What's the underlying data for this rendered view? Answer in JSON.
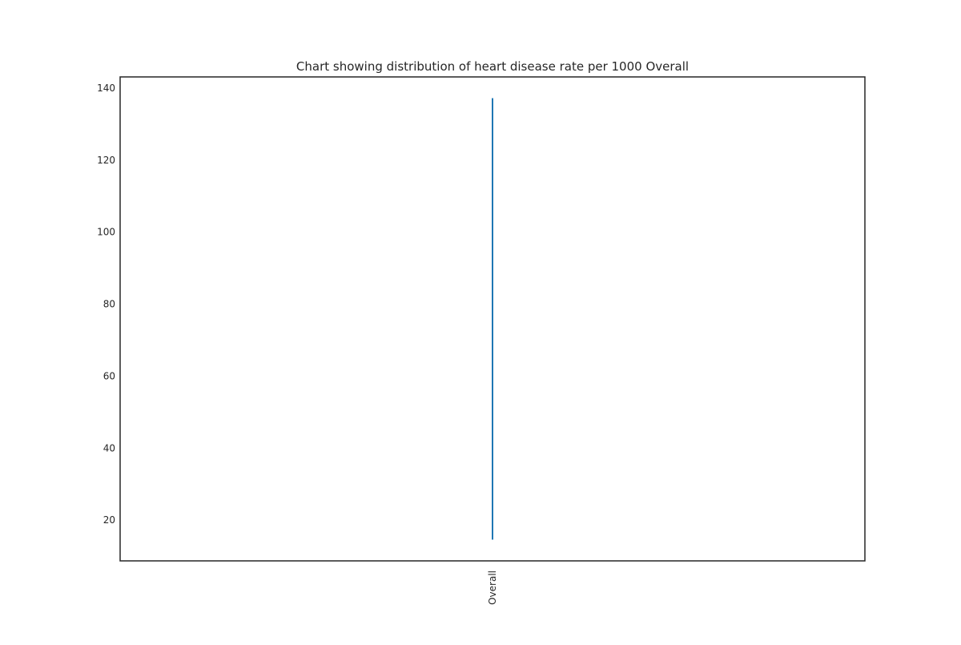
{
  "chart_data": {
    "type": "line",
    "title": "Chart showing distribution of heart disease rate per 1000 Overall",
    "xlabel": "",
    "ylabel": "",
    "categories": [
      "Overall"
    ],
    "series": [
      {
        "values_range": [
          14.6,
          137.2
        ],
        "color": "#1f77b4"
      }
    ],
    "ylim": [
      8.7,
      143.1
    ],
    "yticks": [
      20,
      40,
      60,
      80,
      100,
      120,
      140
    ],
    "ytick_labels": [
      "20",
      "40",
      "60",
      "80",
      "100",
      "120",
      "140"
    ],
    "grid": false,
    "legend": "none"
  }
}
